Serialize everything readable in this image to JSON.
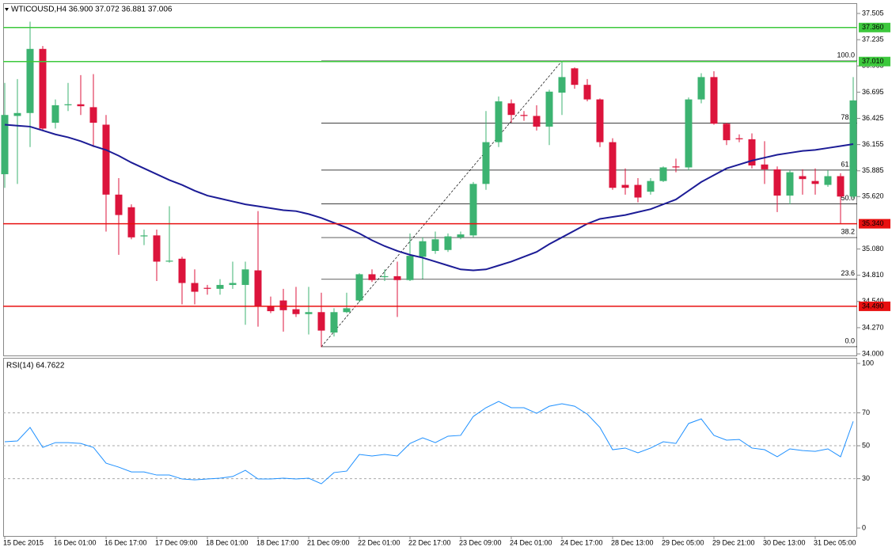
{
  "chart_data": [
    {
      "type": "candlestick",
      "title": "WTICOUSD,H4  36.900 37.072 36.881 37.006",
      "categories": [
        "15 Dec 2015",
        null,
        null,
        null,
        "16 Dec 01:00",
        null,
        null,
        null,
        "16 Dec 17:00",
        null,
        null,
        null,
        "17 Dec 09:00",
        null,
        null,
        null,
        "18 Dec 01:00",
        null,
        null,
        null,
        "18 Dec 17:00",
        null,
        null,
        null,
        "21 Dec 09:00",
        null,
        null,
        null,
        "22 Dec 01:00",
        null,
        null,
        null,
        "22 Dec 17:00",
        null,
        null,
        null,
        "23 Dec 09:00",
        null,
        null,
        null,
        "24 Dec 01:00",
        null,
        null,
        null,
        "24 Dec 17:00",
        null,
        null,
        null,
        "28 Dec 13:00",
        null,
        null,
        null,
        "29 Dec 05:00",
        null,
        null,
        null,
        "29 Dec 21:00",
        null,
        null,
        null,
        "30 Dec 13:00",
        null,
        null,
        null,
        "31 Dec 05:00",
        null,
        null,
        null
      ],
      "open": [
        35.85,
        36.45,
        36.48,
        37.14,
        36.38,
        36.56,
        36.57,
        36.54,
        36.36,
        35.64,
        35.51,
        35.21,
        35.22,
        34.95,
        34.98,
        34.73,
        34.68,
        34.67,
        34.71,
        34.71,
        34.86,
        34.49,
        34.55,
        34.46,
        34.41,
        34.43,
        34.22,
        34.43,
        34.55,
        34.82,
        34.79,
        34.8,
        34.76,
        35.0,
        35.06,
        35.07,
        35.2,
        35.22,
        35.75,
        36.18,
        36.58,
        36.46,
        36.45,
        36.34,
        36.69,
        36.94,
        36.77,
        36.62,
        36.18,
        35.74,
        35.74,
        35.67,
        35.78,
        35.93,
        35.92,
        36.62,
        36.85,
        36.37,
        36.22,
        36.21,
        35.95,
        35.9,
        35.63,
        35.83,
        35.78,
        35.74,
        35.83,
        35.62
      ],
      "high": [
        36.79,
        36.83,
        37.42,
        37.17,
        36.62,
        36.79,
        36.87,
        36.88,
        36.46,
        35.81,
        35.54,
        35.28,
        35.28,
        35.52,
        35.0,
        34.87,
        34.71,
        34.77,
        34.95,
        34.95,
        35.47,
        34.59,
        34.67,
        34.69,
        34.69,
        34.63,
        34.47,
        34.63,
        34.83,
        34.87,
        34.87,
        34.95,
        35.24,
        35.2,
        35.26,
        35.24,
        35.26,
        35.77,
        36.5,
        36.65,
        36.62,
        36.5,
        36.56,
        36.72,
        37.02,
        36.95,
        36.83,
        36.63,
        36.22,
        35.91,
        35.81,
        35.81,
        35.93,
        36.01,
        36.64,
        36.89,
        36.91,
        36.38,
        36.26,
        36.27,
        36.19,
        35.93,
        35.89,
        35.9,
        35.91,
        35.89,
        35.86,
        36.85
      ],
      "low": [
        35.71,
        35.75,
        36.13,
        36.3,
        36.32,
        36.5,
        36.46,
        36.13,
        35.26,
        35.02,
        35.18,
        35.12,
        34.75,
        34.94,
        34.51,
        34.51,
        34.61,
        34.61,
        34.67,
        34.3,
        34.28,
        34.42,
        34.23,
        34.38,
        34.2,
        34.07,
        34.18,
        34.42,
        34.53,
        34.74,
        34.75,
        34.38,
        34.75,
        34.77,
        35.03,
        35.05,
        35.18,
        35.2,
        35.69,
        36.13,
        36.38,
        36.4,
        36.3,
        36.15,
        36.46,
        36.73,
        36.6,
        36.13,
        35.69,
        35.64,
        35.56,
        35.64,
        35.77,
        35.87,
        35.89,
        36.58,
        36.36,
        36.15,
        36.18,
        35.91,
        35.75,
        35.46,
        35.54,
        35.64,
        35.64,
        35.72,
        35.34,
        35.6
      ],
      "close": [
        36.46,
        36.48,
        37.14,
        36.32,
        36.56,
        36.57,
        36.55,
        36.38,
        35.64,
        35.43,
        35.2,
        35.22,
        34.95,
        34.96,
        34.73,
        34.64,
        34.67,
        34.71,
        34.73,
        34.87,
        34.49,
        34.44,
        34.45,
        34.41,
        34.43,
        34.24,
        34.43,
        34.47,
        34.82,
        34.76,
        34.8,
        34.76,
        35.01,
        35.16,
        35.18,
        35.21,
        35.23,
        35.75,
        36.18,
        36.6,
        36.46,
        36.45,
        36.34,
        36.7,
        36.85,
        36.77,
        36.62,
        36.18,
        35.71,
        35.71,
        35.61,
        35.78,
        35.92,
        35.92,
        36.62,
        36.85,
        36.37,
        36.2,
        36.21,
        35.94,
        35.9,
        35.63,
        35.87,
        35.8,
        35.75,
        35.83,
        35.62,
        36.61
      ],
      "up_color": "#3cb371",
      "down_color": "#dc143c",
      "ma": {
        "color": "#1c1c96",
        "values": [
          36.36,
          36.35,
          36.34,
          36.3,
          36.26,
          36.23,
          36.19,
          36.14,
          36.1,
          36.04,
          35.97,
          35.91,
          35.85,
          35.79,
          35.74,
          35.68,
          35.63,
          35.6,
          35.57,
          35.54,
          35.52,
          35.5,
          35.48,
          35.47,
          35.44,
          35.4,
          35.35,
          35.3,
          35.24,
          35.17,
          35.11,
          35.06,
          35.02,
          34.99,
          34.95,
          34.91,
          34.87,
          34.86,
          34.87,
          34.91,
          34.95,
          35.0,
          35.05,
          35.13,
          35.2,
          35.27,
          35.34,
          35.39,
          35.41,
          35.43,
          35.46,
          35.49,
          35.54,
          35.59,
          35.68,
          35.77,
          35.84,
          35.91,
          35.95,
          35.99,
          36.02,
          36.05,
          36.07,
          36.09,
          36.1,
          36.12,
          36.14,
          36.16
        ]
      },
      "levels": [
        {
          "value": 37.36,
          "label": "37.360",
          "color": "#3cc83c"
        },
        {
          "value": 37.01,
          "label": "37.010",
          "color": "#3cc83c"
        },
        {
          "value": 35.34,
          "label": "35.340",
          "color": "#e81010"
        },
        {
          "value": 34.49,
          "label": "34.490",
          "color": "#e81010"
        }
      ],
      "fibo": {
        "color": "#000000",
        "start_index": 25,
        "end_index": 44,
        "levels": [
          {
            "label": "100.0",
            "price": 37.016
          },
          {
            "label": "78.2",
            "price": 36.375
          },
          {
            "label": "61.8",
            "price": 35.892
          },
          {
            "label": "50.0",
            "price": 35.545
          },
          {
            "label": "38.2",
            "price": 35.198
          },
          {
            "label": "23.6",
            "price": 34.768
          },
          {
            "label": "0.0",
            "price": 34.074
          }
        ]
      },
      "ylim": [
        33.984,
        37.611
      ],
      "yticks": [
        37.505,
        37.235,
        36.965,
        36.695,
        36.425,
        36.155,
        35.885,
        {
          "value": 35.62,
          "label": "35.620"
        },
        {
          "value": 35.08,
          "label": "35.080"
        },
        {
          "value": 34.81,
          "label": "34.810"
        },
        {
          "value": 34.54,
          "label": "34.540"
        },
        {
          "value": 34.27,
          "label": "34.270"
        },
        {
          "value": 34.0,
          "label": "34.000"
        }
      ]
    },
    {
      "type": "line",
      "title": "RSI(14) 64.7622",
      "color": "#1e90ff",
      "values": [
        52.4,
        52.9,
        61.1,
        49.0,
        51.9,
        51.9,
        51.4,
        49.0,
        39.4,
        37.0,
        34.1,
        34.1,
        32.2,
        32.2,
        29.8,
        29.3,
        29.8,
        30.3,
        31.3,
        35.1,
        29.8,
        29.8,
        30.3,
        29.8,
        30.3,
        26.9,
        33.7,
        34.6,
        44.7,
        43.8,
        44.7,
        43.8,
        51.4,
        54.8,
        51.9,
        55.8,
        56.3,
        67.8,
        73.1,
        76.9,
        73.1,
        73.1,
        69.7,
        74.0,
        75.5,
        74.0,
        69.2,
        61.1,
        47.6,
        48.6,
        45.7,
        48.6,
        52.4,
        51.4,
        63.5,
        66.3,
        56.3,
        53.4,
        53.8,
        48.6,
        47.6,
        43.3,
        48.1,
        47.1,
        46.6,
        48.1,
        43.3,
        64.8
      ],
      "levels": [
        70,
        50,
        30
      ],
      "ylim": [
        -4.8,
        103.4
      ],
      "yticks": [
        100,
        70,
        50,
        30,
        0
      ]
    }
  ]
}
